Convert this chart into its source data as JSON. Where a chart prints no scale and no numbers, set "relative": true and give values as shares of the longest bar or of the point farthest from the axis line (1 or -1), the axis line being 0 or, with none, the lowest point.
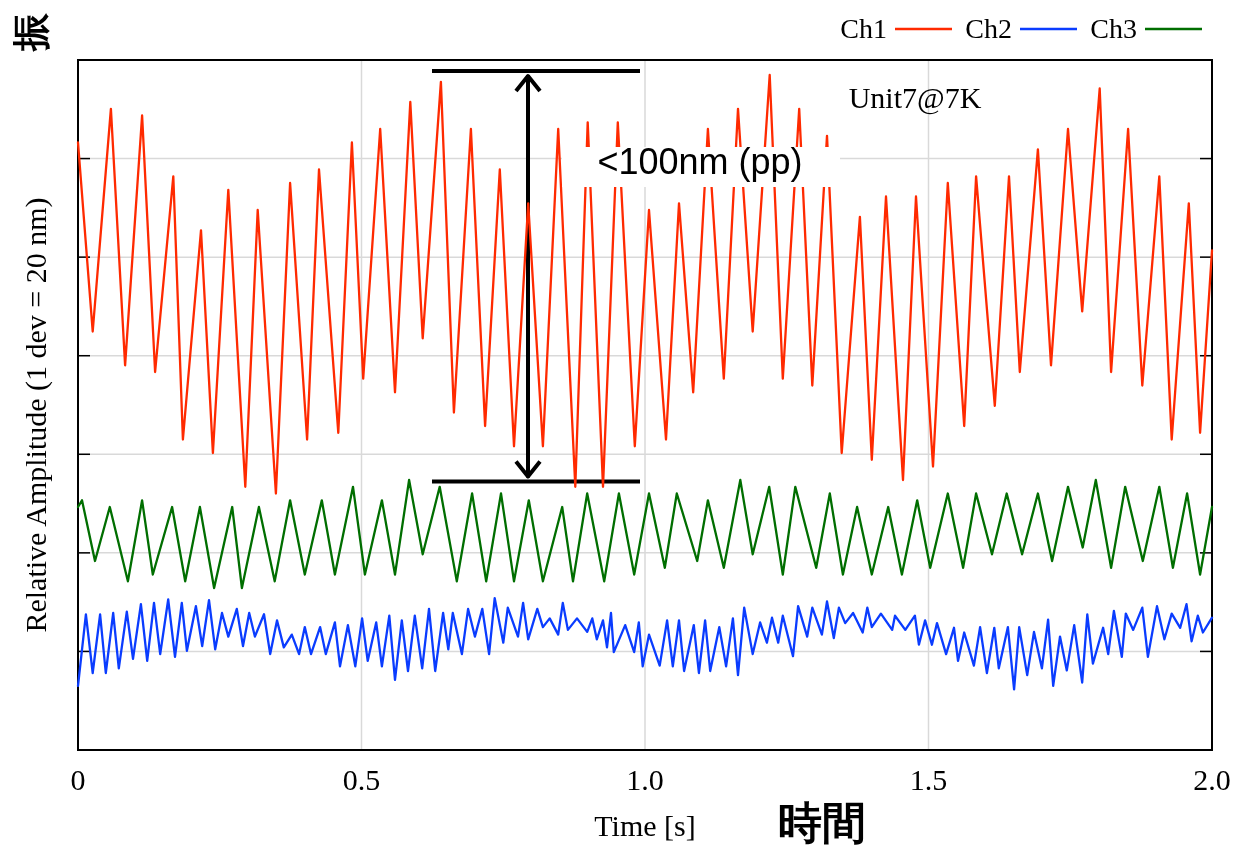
{
  "chart_data": {
    "type": "line",
    "relative": true,
    "xlabel": "Time [s]",
    "ylabel": "Relative Amplitude (1 dev = 20 nm)",
    "annotations": [
      "Unit7@7K",
      "<100nm (pp)",
      "時間",
      "振"
    ],
    "xlim": [
      0,
      2
    ],
    "xticks": [
      0,
      0.5,
      {
        "value": 1,
        "label": "1.0"
      },
      1.5,
      {
        "value": 2,
        "label": "2.0"
      }
    ],
    "grid": true,
    "legend": "top right",
    "series": [
      {
        "name": "Ch1",
        "color": "#ff2a00",
        "x": [
          0,
          0.026,
          0.058,
          0.083,
          0.113,
          0.136,
          0.168,
          0.185,
          0.217,
          0.238,
          0.265,
          0.295,
          0.317,
          0.349,
          0.374,
          0.404,
          0.425,
          0.459,
          0.483,
          0.503,
          0.533,
          0.559,
          0.586,
          0.608,
          0.64,
          0.663,
          0.693,
          0.718,
          0.744,
          0.769,
          0.794,
          0.82,
          0.847,
          0.877,
          0.899,
          0.926,
          0.952,
          0.982,
          1.007,
          1.037,
          1.06,
          1.085,
          1.111,
          1.139,
          1.164,
          1.19,
          1.22,
          1.243,
          1.272,
          1.295,
          1.321,
          1.347,
          1.379,
          1.4,
          1.425,
          1.455,
          1.478,
          1.508,
          1.534,
          1.563,
          1.584,
          1.617,
          1.642,
          1.661,
          1.693,
          1.716,
          1.746,
          1.771,
          1.802,
          1.822,
          1.852,
          1.877,
          1.907,
          1.929,
          1.959,
          1.979,
          2.0
        ],
        "values": [
          0.9,
          0.62,
          0.95,
          0.57,
          0.94,
          0.56,
          0.85,
          0.46,
          0.77,
          0.44,
          0.83,
          0.39,
          0.8,
          0.38,
          0.84,
          0.46,
          0.86,
          0.47,
          0.9,
          0.55,
          0.92,
          0.53,
          0.96,
          0.61,
          0.99,
          0.5,
          0.92,
          0.48,
          0.86,
          0.45,
          0.81,
          0.45,
          0.92,
          0.39,
          0.93,
          0.39,
          0.93,
          0.45,
          0.8,
          0.46,
          0.81,
          0.53,
          0.92,
          0.55,
          0.95,
          0.62,
          1.0,
          0.55,
          0.95,
          0.54,
          0.91,
          0.44,
          0.79,
          0.43,
          0.82,
          0.4,
          0.82,
          0.42,
          0.84,
          0.48,
          0.85,
          0.51,
          0.85,
          0.56,
          0.89,
          0.57,
          0.92,
          0.65,
          0.98,
          0.56,
          0.92,
          0.54,
          0.85,
          0.46,
          0.81,
          0.47,
          0.74
        ]
      },
      {
        "name": "Ch2",
        "color": "#0a3cff",
        "x": [
          0,
          0.014,
          0.026,
          0.039,
          0.049,
          0.062,
          0.072,
          0.086,
          0.097,
          0.111,
          0.122,
          0.134,
          0.145,
          0.159,
          0.171,
          0.183,
          0.192,
          0.208,
          0.219,
          0.231,
          0.242,
          0.254,
          0.265,
          0.28,
          0.291,
          0.302,
          0.312,
          0.328,
          0.339,
          0.351,
          0.363,
          0.377,
          0.39,
          0.4,
          0.411,
          0.427,
          0.437,
          0.453,
          0.462,
          0.476,
          0.489,
          0.501,
          0.511,
          0.526,
          0.536,
          0.549,
          0.559,
          0.571,
          0.582,
          0.594,
          0.607,
          0.619,
          0.63,
          0.644,
          0.653,
          0.661,
          0.677,
          0.688,
          0.7,
          0.713,
          0.725,
          0.735,
          0.75,
          0.758,
          0.776,
          0.785,
          0.794,
          0.81,
          0.82,
          0.832,
          0.847,
          0.855,
          0.864,
          0.88,
          0.898,
          0.907,
          0.915,
          0.926,
          0.933,
          0.94,
          0.945,
          0.965,
          0.981,
          0.989,
          0.996,
          1.007,
          1.026,
          1.039,
          1.049,
          1.06,
          1.069,
          1.086,
          1.095,
          1.106,
          1.115,
          1.131,
          1.143,
          1.155,
          1.164,
          1.175,
          1.19,
          1.203,
          1.215,
          1.224,
          1.235,
          1.243,
          1.261,
          1.27,
          1.286,
          1.295,
          1.312,
          1.321,
          1.333,
          1.342,
          1.353,
          1.367,
          1.384,
          1.392,
          1.4,
          1.416,
          1.436,
          1.441,
          1.459,
          1.476,
          1.483,
          1.494,
          1.506,
          1.515,
          1.531,
          1.545,
          1.552,
          1.563,
          1.58,
          1.591,
          1.603,
          1.616,
          1.624,
          1.64,
          1.651,
          1.66,
          1.674,
          1.686,
          1.7,
          1.711,
          1.72,
          1.732,
          1.744,
          1.757,
          1.771,
          1.78,
          1.79,
          1.808,
          1.817,
          1.827,
          1.841,
          1.848,
          1.861,
          1.877,
          1.887,
          1.903,
          1.916,
          1.929,
          1.944,
          1.955,
          1.964,
          1.975,
          1.984,
          2.0
        ],
        "values": [
          0.095,
          0.201,
          0.114,
          0.201,
          0.114,
          0.203,
          0.121,
          0.205,
          0.135,
          0.216,
          0.132,
          0.218,
          0.142,
          0.223,
          0.138,
          0.218,
          0.147,
          0.213,
          0.154,
          0.222,
          0.149,
          0.203,
          0.168,
          0.209,
          0.154,
          0.203,
          0.168,
          0.201,
          0.142,
          0.192,
          0.152,
          0.171,
          0.142,
          0.182,
          0.142,
          0.182,
          0.142,
          0.189,
          0.124,
          0.185,
          0.124,
          0.195,
          0.132,
          0.189,
          0.124,
          0.199,
          0.104,
          0.192,
          0.117,
          0.199,
          0.121,
          0.209,
          0.117,
          0.203,
          0.149,
          0.203,
          0.142,
          0.209,
          0.168,
          0.209,
          0.142,
          0.225,
          0.159,
          0.211,
          0.168,
          0.218,
          0.164,
          0.209,
          0.182,
          0.195,
          0.171,
          0.218,
          0.178,
          0.195,
          0.175,
          0.195,
          0.164,
          0.192,
          0.152,
          0.203,
          0.145,
          0.185,
          0.145,
          0.189,
          0.124,
          0.171,
          0.125,
          0.192,
          0.124,
          0.192,
          0.117,
          0.185,
          0.114,
          0.192,
          0.117,
          0.182,
          0.124,
          0.195,
          0.111,
          0.211,
          0.142,
          0.189,
          0.159,
          0.196,
          0.159,
          0.199,
          0.139,
          0.213,
          0.168,
          0.211,
          0.171,
          0.22,
          0.166,
          0.211,
          0.188,
          0.203,
          0.174,
          0.211,
          0.182,
          0.202,
          0.178,
          0.199,
          0.178,
          0.199,
          0.156,
          0.192,
          0.156,
          0.188,
          0.142,
          0.181,
          0.132,
          0.174,
          0.125,
          0.182,
          0.114,
          0.181,
          0.121,
          0.182,
          0.09,
          0.182,
          0.111,
          0.175,
          0.121,
          0.193,
          0.095,
          0.168,
          0.118,
          0.185,
          0.1,
          0.201,
          0.128,
          0.181,
          0.142,
          0.206,
          0.138,
          0.202,
          0.178,
          0.211,
          0.138,
          0.213,
          0.164,
          0.202,
          0.181,
          0.216,
          0.161,
          0.199,
          0.174,
          0.196
        ]
      },
      {
        "name": "Ch3",
        "color": "#006e00",
        "x": [
          0,
          0.007,
          0.03,
          0.056,
          0.088,
          0.113,
          0.132,
          0.166,
          0.189,
          0.215,
          0.24,
          0.272,
          0.289,
          0.319,
          0.347,
          0.374,
          0.4,
          0.43,
          0.453,
          0.485,
          0.506,
          0.536,
          0.559,
          0.584,
          0.608,
          0.638,
          0.668,
          0.695,
          0.72,
          0.746,
          0.769,
          0.795,
          0.82,
          0.854,
          0.873,
          0.898,
          0.928,
          0.954,
          0.981,
          1.007,
          1.035,
          1.056,
          1.092,
          1.111,
          1.139,
          1.168,
          1.19,
          1.219,
          1.243,
          1.265,
          1.302,
          1.326,
          1.349,
          1.374,
          1.4,
          1.429,
          1.453,
          1.48,
          1.503,
          1.534,
          1.561,
          1.584,
          1.612,
          1.638,
          1.665,
          1.693,
          1.718,
          1.746,
          1.772,
          1.795,
          1.822,
          1.847,
          1.878,
          1.907,
          1.931,
          1.956,
          1.979,
          2.0
        ],
        "values": [
          0.36,
          0.37,
          0.28,
          0.36,
          0.25,
          0.37,
          0.26,
          0.36,
          0.25,
          0.36,
          0.24,
          0.36,
          0.24,
          0.36,
          0.25,
          0.37,
          0.26,
          0.37,
          0.26,
          0.39,
          0.26,
          0.37,
          0.26,
          0.4,
          0.29,
          0.39,
          0.25,
          0.38,
          0.25,
          0.38,
          0.25,
          0.37,
          0.25,
          0.36,
          0.25,
          0.38,
          0.25,
          0.38,
          0.26,
          0.38,
          0.27,
          0.38,
          0.28,
          0.37,
          0.27,
          0.4,
          0.29,
          0.39,
          0.26,
          0.39,
          0.27,
          0.38,
          0.26,
          0.36,
          0.26,
          0.36,
          0.26,
          0.37,
          0.27,
          0.38,
          0.27,
          0.38,
          0.29,
          0.38,
          0.29,
          0.38,
          0.28,
          0.39,
          0.3,
          0.4,
          0.27,
          0.39,
          0.28,
          0.39,
          0.27,
          0.38,
          0.26,
          0.36
        ]
      }
    ]
  }
}
